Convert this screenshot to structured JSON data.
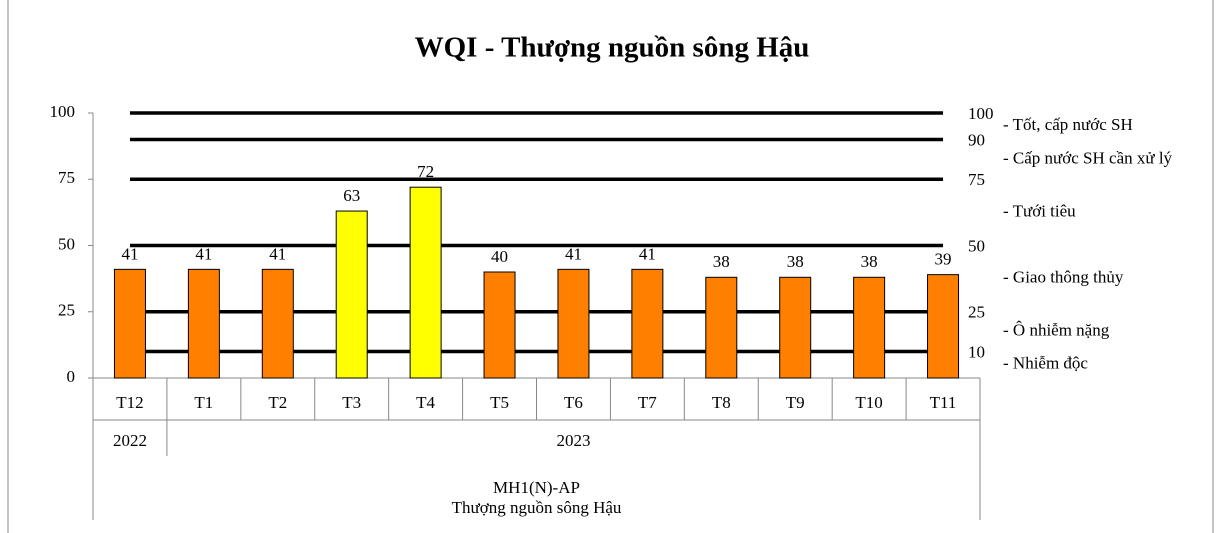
{
  "chart_data": {
    "type": "bar",
    "title": "WQI - Thượng nguồn sông Hậu",
    "categories": [
      "T12",
      "T1",
      "T2",
      "T3",
      "T4",
      "T5",
      "T6",
      "T7",
      "T8",
      "T9",
      "T10",
      "T11"
    ],
    "values": [
      41,
      41,
      41,
      63,
      72,
      40,
      41,
      41,
      38,
      38,
      38,
      39
    ],
    "colors": [
      "#ff8000",
      "#ff8000",
      "#ff8000",
      "#ffff00",
      "#ffff00",
      "#ff8000",
      "#ff8000",
      "#ff8000",
      "#ff8000",
      "#ff8000",
      "#ff8000",
      "#ff8000"
    ],
    "groups": [
      {
        "label": "2022",
        "from": 0,
        "to": 0
      },
      {
        "label": "2023",
        "from": 1,
        "to": 11
      }
    ],
    "x_label_lines": [
      "MH1(N)-AP",
      "Thượng nguồn sông Hậu"
    ],
    "ylim": [
      0,
      100
    ],
    "yticks": [
      0,
      25,
      50,
      75,
      100
    ],
    "grid": false,
    "reference_lines": [
      100,
      90,
      75,
      50,
      25,
      10
    ],
    "zones": [
      "- Tốt, cấp nước SH",
      "- Cấp nước SH cần xử lý",
      "- Tưới tiêu",
      "- Giao thông thủy",
      "- Ô nhiễm nặng",
      "- Nhiễm độc"
    ]
  }
}
